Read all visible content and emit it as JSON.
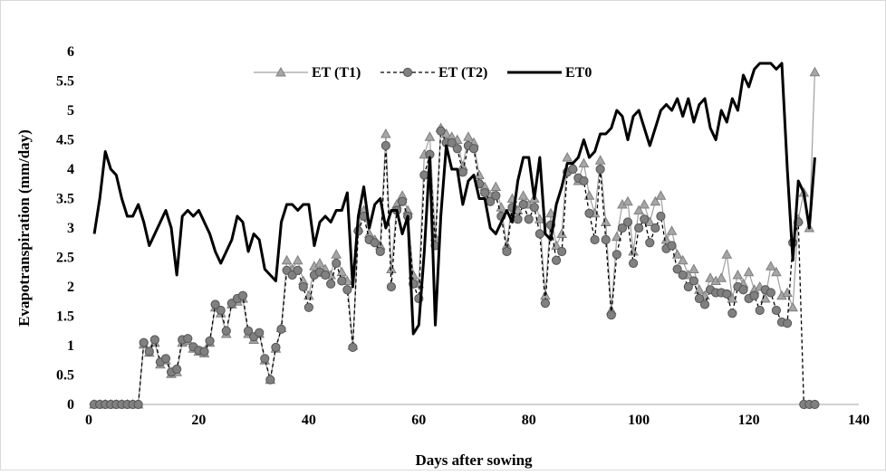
{
  "chart_data": {
    "type": "line",
    "title": "",
    "xlabel": "Days after sowing",
    "ylabel": "Evapotranspiration (mm/day)",
    "xlim": [
      0,
      140
    ],
    "ylim": [
      0,
      6
    ],
    "x_ticks": [
      0,
      20,
      40,
      60,
      80,
      100,
      120,
      140
    ],
    "y_ticks": [
      0,
      0.5,
      1,
      1.5,
      2,
      2.5,
      3,
      3.5,
      4,
      4.5,
      5,
      5.5,
      6
    ],
    "grid": false,
    "legend_position": "top",
    "series": [
      {
        "name": "ET (T1)",
        "marker": "triangle",
        "line_style": "solid",
        "color": "#9e9e9e",
        "x": [
          1,
          2,
          3,
          4,
          5,
          6,
          7,
          8,
          9,
          10,
          11,
          12,
          13,
          14,
          15,
          16,
          17,
          18,
          19,
          20,
          21,
          22,
          23,
          24,
          25,
          26,
          27,
          28,
          29,
          30,
          31,
          32,
          33,
          34,
          35,
          36,
          37,
          38,
          39,
          40,
          41,
          42,
          43,
          44,
          45,
          46,
          47,
          48,
          49,
          50,
          51,
          52,
          53,
          54,
          55,
          56,
          57,
          58,
          59,
          60,
          61,
          62,
          63,
          64,
          65,
          66,
          67,
          68,
          69,
          70,
          71,
          72,
          73,
          74,
          75,
          76,
          77,
          78,
          79,
          80,
          81,
          82,
          83,
          84,
          85,
          86,
          87,
          88,
          89,
          90,
          91,
          92,
          93,
          94,
          95,
          96,
          97,
          98,
          99,
          100,
          101,
          102,
          103,
          104,
          105,
          106,
          107,
          108,
          109,
          110,
          111,
          112,
          113,
          114,
          115,
          116,
          117,
          118,
          119,
          120,
          121,
          122,
          123,
          124,
          125,
          126,
          127,
          128,
          129,
          130,
          131,
          132
        ],
        "values": [
          0,
          0,
          0,
          0,
          0,
          0,
          0,
          0,
          0,
          1.02,
          0.88,
          1.05,
          0.68,
          0.75,
          0.52,
          0.55,
          1.05,
          1.08,
          0.95,
          0.9,
          0.87,
          1.05,
          1.65,
          1.55,
          1.2,
          1.7,
          1.75,
          1.8,
          1.2,
          1.1,
          1.2,
          0.75,
          0.42,
          0.95,
          1.3,
          2.45,
          2.3,
          2.45,
          2.1,
          1.85,
          2.35,
          2.4,
          2.3,
          2.2,
          2.55,
          2.25,
          2.1,
          1.0,
          3.0,
          3.3,
          2.9,
          2.8,
          2.7,
          4.6,
          2.3,
          3.4,
          3.55,
          3.3,
          2.2,
          2.05,
          4.25,
          4.55,
          2.85,
          4.7,
          4.6,
          4.55,
          4.5,
          4.05,
          4.55,
          4.45,
          3.9,
          3.7,
          3.55,
          3.7,
          3.35,
          2.7,
          3.5,
          3.3,
          3.55,
          3.4,
          3.5,
          3.15,
          1.85,
          3.25,
          2.7,
          2.9,
          4.2,
          4.05,
          3.8,
          4.1,
          3.55,
          3.25,
          4.15,
          3.1,
          1.6,
          2.85,
          3.4,
          3.45,
          2.6,
          3.3,
          3.4,
          3.1,
          3.45,
          3.55,
          2.8,
          2.95,
          2.55,
          2.45,
          2.2,
          2.3,
          1.95,
          1.85,
          2.15,
          2.1,
          2.15,
          2.55,
          1.8,
          2.2,
          2.05,
          2.25,
          1.95,
          2.0,
          1.8,
          2.35,
          2.25,
          1.85,
          1.9,
          1.65,
          3.15,
          3.6,
          3.0,
          5.65
        ]
      },
      {
        "name": "ET (T2)",
        "marker": "circle",
        "line_style": "dashed",
        "color": "#7f7f7f",
        "x": [
          1,
          2,
          3,
          4,
          5,
          6,
          7,
          8,
          9,
          10,
          11,
          12,
          13,
          14,
          15,
          16,
          17,
          18,
          19,
          20,
          21,
          22,
          23,
          24,
          25,
          26,
          27,
          28,
          29,
          30,
          31,
          32,
          33,
          34,
          35,
          36,
          37,
          38,
          39,
          40,
          41,
          42,
          43,
          44,
          45,
          46,
          47,
          48,
          49,
          50,
          51,
          52,
          53,
          54,
          55,
          56,
          57,
          58,
          59,
          60,
          61,
          62,
          63,
          64,
          65,
          66,
          67,
          68,
          69,
          70,
          71,
          72,
          73,
          74,
          75,
          76,
          77,
          78,
          79,
          80,
          81,
          82,
          83,
          84,
          85,
          86,
          87,
          88,
          89,
          90,
          91,
          92,
          93,
          94,
          95,
          96,
          97,
          98,
          99,
          100,
          101,
          102,
          103,
          104,
          105,
          106,
          107,
          108,
          109,
          110,
          111,
          112,
          113,
          114,
          115,
          116,
          117,
          118,
          119,
          120,
          121,
          122,
          123,
          124,
          125,
          126,
          127,
          128,
          129,
          130,
          131,
          132
        ],
        "values": [
          0,
          0,
          0,
          0,
          0,
          0,
          0,
          0,
          0,
          1.05,
          0.9,
          1.1,
          0.72,
          0.78,
          0.55,
          0.6,
          1.1,
          1.12,
          0.98,
          0.92,
          0.9,
          1.08,
          1.7,
          1.6,
          1.25,
          1.72,
          1.8,
          1.85,
          1.25,
          1.15,
          1.22,
          0.78,
          0.42,
          0.97,
          1.28,
          2.28,
          2.2,
          2.28,
          2.0,
          1.65,
          2.2,
          2.25,
          2.2,
          2.05,
          2.4,
          2.1,
          1.95,
          0.97,
          2.95,
          3.2,
          2.8,
          2.75,
          2.6,
          4.4,
          2.0,
          3.3,
          3.45,
          3.2,
          2.05,
          1.8,
          3.9,
          4.25,
          2.7,
          4.65,
          4.45,
          4.45,
          4.35,
          3.95,
          4.4,
          4.35,
          3.75,
          3.6,
          3.45,
          3.55,
          3.2,
          2.6,
          3.35,
          3.15,
          3.4,
          3.15,
          3.35,
          2.9,
          1.72,
          3.05,
          2.45,
          2.6,
          3.95,
          4.0,
          3.85,
          3.8,
          3.25,
          2.8,
          4.0,
          2.8,
          1.52,
          2.55,
          3.0,
          3.1,
          2.4,
          3.0,
          3.15,
          2.75,
          3.0,
          3.2,
          2.65,
          2.7,
          2.3,
          2.2,
          2.0,
          2.1,
          1.8,
          1.7,
          1.95,
          1.9,
          1.9,
          1.88,
          1.55,
          2.0,
          1.95,
          1.8,
          1.85,
          1.6,
          1.95,
          1.9,
          1.6,
          1.4,
          1.38,
          2.75,
          3.1,
          0,
          0,
          0
        ]
      },
      {
        "name": "ET0",
        "marker": "none",
        "line_style": "solid",
        "color": "#000000",
        "x": [
          1,
          2,
          3,
          4,
          5,
          6,
          7,
          8,
          9,
          10,
          11,
          12,
          13,
          14,
          15,
          16,
          17,
          18,
          19,
          20,
          21,
          22,
          23,
          24,
          25,
          26,
          27,
          28,
          29,
          30,
          31,
          32,
          33,
          34,
          35,
          36,
          37,
          38,
          39,
          40,
          41,
          42,
          43,
          44,
          45,
          46,
          47,
          48,
          49,
          50,
          51,
          52,
          53,
          54,
          55,
          56,
          57,
          58,
          59,
          60,
          61,
          62,
          63,
          64,
          65,
          66,
          67,
          68,
          69,
          70,
          71,
          72,
          73,
          74,
          75,
          76,
          77,
          78,
          79,
          80,
          81,
          82,
          83,
          84,
          85,
          86,
          87,
          88,
          89,
          90,
          91,
          92,
          93,
          94,
          95,
          96,
          97,
          98,
          99,
          100,
          101,
          102,
          103,
          104,
          105,
          106,
          107,
          108,
          109,
          110,
          111,
          112,
          113,
          114,
          115,
          116,
          117,
          118,
          119,
          120,
          121,
          122,
          123,
          124,
          125,
          126,
          127,
          128,
          129,
          130,
          131,
          132
        ],
        "values": [
          2.9,
          3.5,
          4.3,
          4.0,
          3.9,
          3.5,
          3.2,
          3.2,
          3.4,
          3.1,
          2.7,
          2.9,
          3.1,
          3.3,
          3.0,
          2.2,
          3.2,
          3.3,
          3.2,
          3.3,
          3.1,
          2.9,
          2.6,
          2.4,
          2.6,
          2.8,
          3.2,
          3.1,
          2.6,
          2.9,
          2.8,
          2.3,
          2.2,
          2.1,
          3.1,
          3.4,
          3.4,
          3.3,
          3.4,
          3.4,
          2.7,
          3.1,
          3.2,
          3.1,
          3.3,
          3.3,
          3.6,
          2.0,
          3.2,
          3.7,
          3.0,
          3.4,
          3.5,
          3.0,
          3.3,
          3.3,
          2.9,
          3.2,
          1.2,
          1.35,
          2.6,
          4.2,
          1.35,
          3.2,
          4.4,
          4.0,
          4.0,
          3.4,
          3.8,
          3.9,
          3.5,
          3.5,
          3.0,
          2.9,
          3.1,
          3.3,
          3.1,
          3.8,
          4.2,
          4.2,
          3.5,
          4.2,
          2.9,
          2.8,
          3.4,
          3.7,
          4.1,
          4.1,
          4.2,
          4.5,
          4.2,
          4.3,
          4.6,
          4.6,
          4.7,
          5.0,
          4.9,
          4.5,
          4.9,
          5.0,
          4.7,
          4.4,
          4.7,
          5.0,
          5.1,
          5.0,
          5.2,
          4.9,
          5.2,
          4.8,
          5.1,
          5.2,
          4.7,
          4.5,
          5.0,
          4.8,
          5.2,
          5.0,
          5.6,
          5.4,
          5.7,
          5.8,
          5.8,
          5.8,
          5.7,
          5.8,
          4.0,
          2.45,
          3.8,
          3.6,
          3.0,
          4.2
        ]
      }
    ]
  }
}
